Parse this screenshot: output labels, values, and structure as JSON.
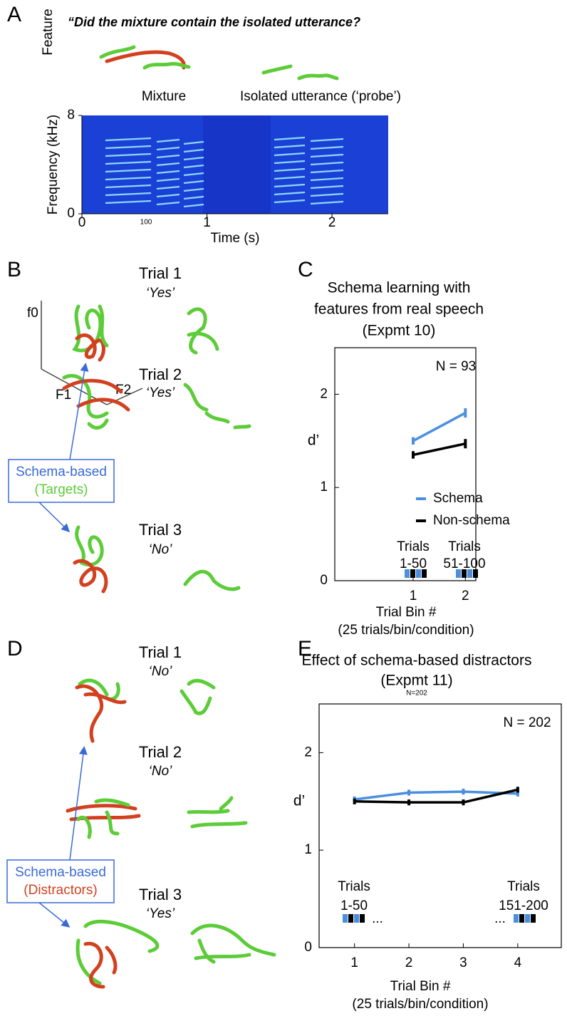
{
  "panels": {
    "A": {
      "label": "A",
      "question": "“Did the mixture contain the isolated utterance?",
      "feature_label": "Feature",
      "mixture_label": "Mixture",
      "probe_label": "Isolated utterance (‘probe’)",
      "spectrogram": {
        "ylabel": "Frequency (kHz)",
        "xlabel": "Time (s)",
        "ylim": [
          0,
          8
        ],
        "yticks": [
          0,
          8
        ],
        "xlim": [
          0,
          2.45
        ],
        "xticks": [
          0,
          1,
          2
        ],
        "stray_label": "100"
      }
    },
    "B": {
      "label": "B",
      "trials": [
        {
          "title": "Trial 1",
          "answer": "‘Yes’"
        },
        {
          "title": "Trial 2",
          "answer": "‘Yes’"
        },
        {
          "title": "Trial 3",
          "answer": "‘No’"
        }
      ],
      "axes": [
        "f0",
        "F1",
        "F2"
      ],
      "box": [
        "Schema-based",
        "(Targets)"
      ]
    },
    "C": {
      "label": "C"
    },
    "D": {
      "label": "D",
      "trials": [
        {
          "title": "Trial 1",
          "answer": "‘No’"
        },
        {
          "title": "Trial 2",
          "answer": "‘No’"
        },
        {
          "title": "Trial 3",
          "answer": "‘Yes’"
        }
      ],
      "box": [
        "Schema-based",
        "(Distractors)"
      ]
    },
    "E": {
      "label": "E"
    }
  },
  "chart_data": [
    {
      "type": "line",
      "title": [
        "Schema learning with",
        "features from real speech",
        "(Expmt 10)"
      ],
      "xlabel": [
        "Trial Bin #",
        "(25 trials/bin/condition)"
      ],
      "ylabel": "d’",
      "x": [
        1,
        2
      ],
      "xlim": [
        -0.5,
        2.2
      ],
      "xticks": [
        1,
        2
      ],
      "ylim": [
        0,
        2.5
      ],
      "yticks": [
        0,
        1,
        2
      ],
      "legend": true,
      "series": [
        {
          "name": "Schema",
          "color": "#4a8fe0",
          "values": [
            1.5,
            1.8
          ],
          "errors": [
            0.04,
            0.05
          ]
        },
        {
          "name": "Non-schema",
          "color": "#000000",
          "values": [
            1.35,
            1.47
          ],
          "errors": [
            0.04,
            0.05
          ]
        }
      ],
      "annotations": [
        "N = 93",
        "Trials",
        "1-50",
        "Trials",
        "51-100"
      ]
    },
    {
      "type": "line",
      "title": [
        "Effect of schema-based distractors",
        "(Expmt 11)"
      ],
      "note": "N=202",
      "xlabel": [
        "Trial Bin #",
        "(25 trials/bin/condition)"
      ],
      "ylabel": "d’",
      "x": [
        1,
        2,
        3,
        4
      ],
      "xlim": [
        0.35,
        4.8
      ],
      "xticks": [
        1,
        2,
        3,
        4
      ],
      "ylim": [
        0,
        2.5
      ],
      "yticks": [
        0,
        1,
        2
      ],
      "legend": false,
      "series": [
        {
          "name": "Schema",
          "color": "#4a8fe0",
          "values": [
            1.52,
            1.59,
            1.6,
            1.58
          ],
          "errors": [
            0.03,
            0.03,
            0.03,
            0.03
          ]
        },
        {
          "name": "Non-schema",
          "color": "#000000",
          "values": [
            1.5,
            1.49,
            1.49,
            1.62
          ],
          "errors": [
            0.03,
            0.03,
            0.03,
            0.03
          ]
        }
      ],
      "annotations": [
        "N = 202",
        "Trials",
        "1-50",
        "...",
        "Trials",
        "151-200",
        "..."
      ]
    }
  ]
}
